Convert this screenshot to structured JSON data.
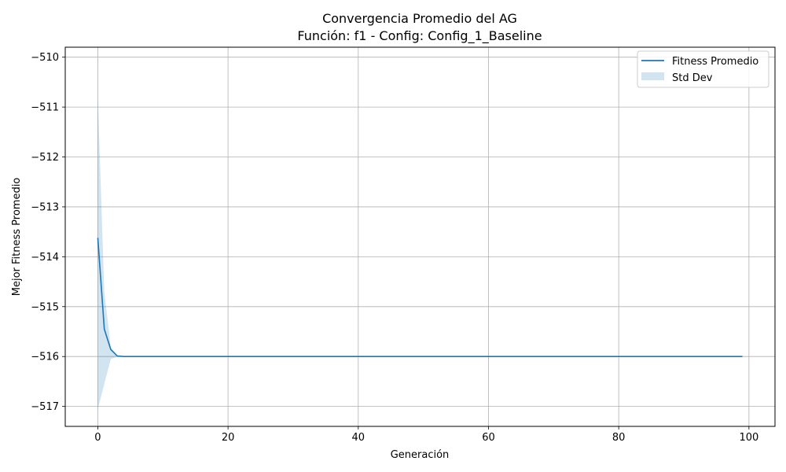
{
  "chart_data": {
    "type": "line",
    "title_line1": "Convergencia Promedio del AG",
    "title_line2": "Función: f1 - Config: Config_1_Baseline",
    "xlabel": "Generación",
    "ylabel": "Mejor Fitness Promedio",
    "xlim": [
      -5,
      104
    ],
    "ylim": [
      -517.4,
      -509.8
    ],
    "xticks": [
      0,
      20,
      40,
      60,
      80,
      100
    ],
    "yticks": [
      -517,
      -516,
      -515,
      -514,
      -513,
      -512,
      -511,
      -510
    ],
    "ytick_labels": [
      "−517",
      "−516",
      "−515",
      "−514",
      "−513",
      "−512",
      "−511",
      "−510"
    ],
    "grid": true,
    "legend_position": "top-right",
    "legend": [
      {
        "label": "Fitness Promedio",
        "kind": "line",
        "color": "#1f77b4"
      },
      {
        "label": "Std Dev",
        "kind": "band",
        "color": "#1f77b4"
      }
    ],
    "series": [
      {
        "name": "Fitness Promedio",
        "color": "#1f77b4",
        "x_start": 0,
        "x_end": 99,
        "head_values": [
          -513.62,
          -515.45,
          -515.86,
          -515.99,
          -516.0
        ],
        "tail_value": -516.0
      }
    ],
    "std_band": {
      "name": "Std Dev",
      "color": "#1f77b4",
      "opacity": 0.2,
      "upper_head": [
        -510.8,
        -514.7,
        -515.82,
        -515.98,
        -516.0
      ],
      "lower_head": [
        -517.05,
        -516.55,
        -516.05,
        -516.0,
        -516.0
      ],
      "tail_value": -516.0
    }
  }
}
